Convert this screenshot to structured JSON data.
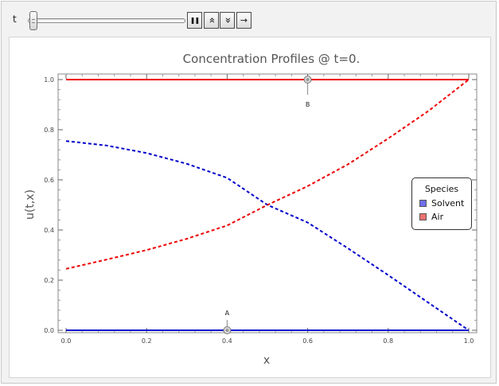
{
  "controls": {
    "slider_label": "t",
    "slider_value": 0,
    "buttons": [
      {
        "name": "pause-button",
        "icon": "pause-icon",
        "glyph": "❚❚"
      },
      {
        "name": "faster-button",
        "icon": "double-chevron-up-icon",
        "glyph": "«"
      },
      {
        "name": "slower-button",
        "icon": "double-chevron-down-icon",
        "glyph": "»"
      },
      {
        "name": "direction-button",
        "icon": "right-arrow-icon",
        "glyph": "→"
      }
    ]
  },
  "chart_data": {
    "type": "line",
    "title": "Concentration Profiles @ t=0.",
    "xlabel": "x",
    "ylabel": "u(t,x)",
    "xlim": [
      0,
      1
    ],
    "ylim": [
      0,
      1
    ],
    "x_ticks": [
      "0.0",
      "0.2",
      "0.4",
      "0.6",
      "0.8",
      "1.0"
    ],
    "y_ticks": [
      "0.0",
      "0.2",
      "0.4",
      "0.6",
      "0.8",
      "1.0"
    ],
    "grid": false,
    "legend": {
      "title": "Species",
      "placement": "right",
      "entries": [
        {
          "label": "Solvent",
          "color": "#7070ee"
        },
        {
          "label": "Air",
          "color": "#ee7070"
        }
      ]
    },
    "series": [
      {
        "color": "#0000cc",
        "style": "solid",
        "x": [
          0,
          1
        ],
        "y": [
          0.0,
          0.0
        ]
      },
      {
        "color": "#ee0000",
        "style": "solid",
        "x": [
          0,
          1
        ],
        "y": [
          1.0,
          1.0
        ]
      },
      {
        "color": "#0000cc",
        "style": "dashed",
        "x": [
          0,
          0.1,
          0.2,
          0.3,
          0.4,
          0.5,
          0.6,
          0.7,
          0.8,
          0.9,
          1.0
        ],
        "y": [
          0.755,
          0.737,
          0.707,
          0.664,
          0.608,
          0.5,
          0.43,
          0.327,
          0.22,
          0.11,
          0.0
        ]
      },
      {
        "color": "#ee0000",
        "style": "dashed",
        "x": [
          0,
          0.1,
          0.2,
          0.3,
          0.4,
          0.5,
          0.6,
          0.7,
          0.8,
          0.9,
          1.0
        ],
        "y": [
          0.245,
          0.282,
          0.32,
          0.365,
          0.418,
          0.5,
          0.575,
          0.662,
          0.765,
          0.875,
          1.0
        ]
      }
    ],
    "markers": [
      {
        "label": "A",
        "x": 0.4,
        "y": 0.0
      },
      {
        "label": "B",
        "x": 0.6,
        "y": 1.0
      }
    ]
  }
}
